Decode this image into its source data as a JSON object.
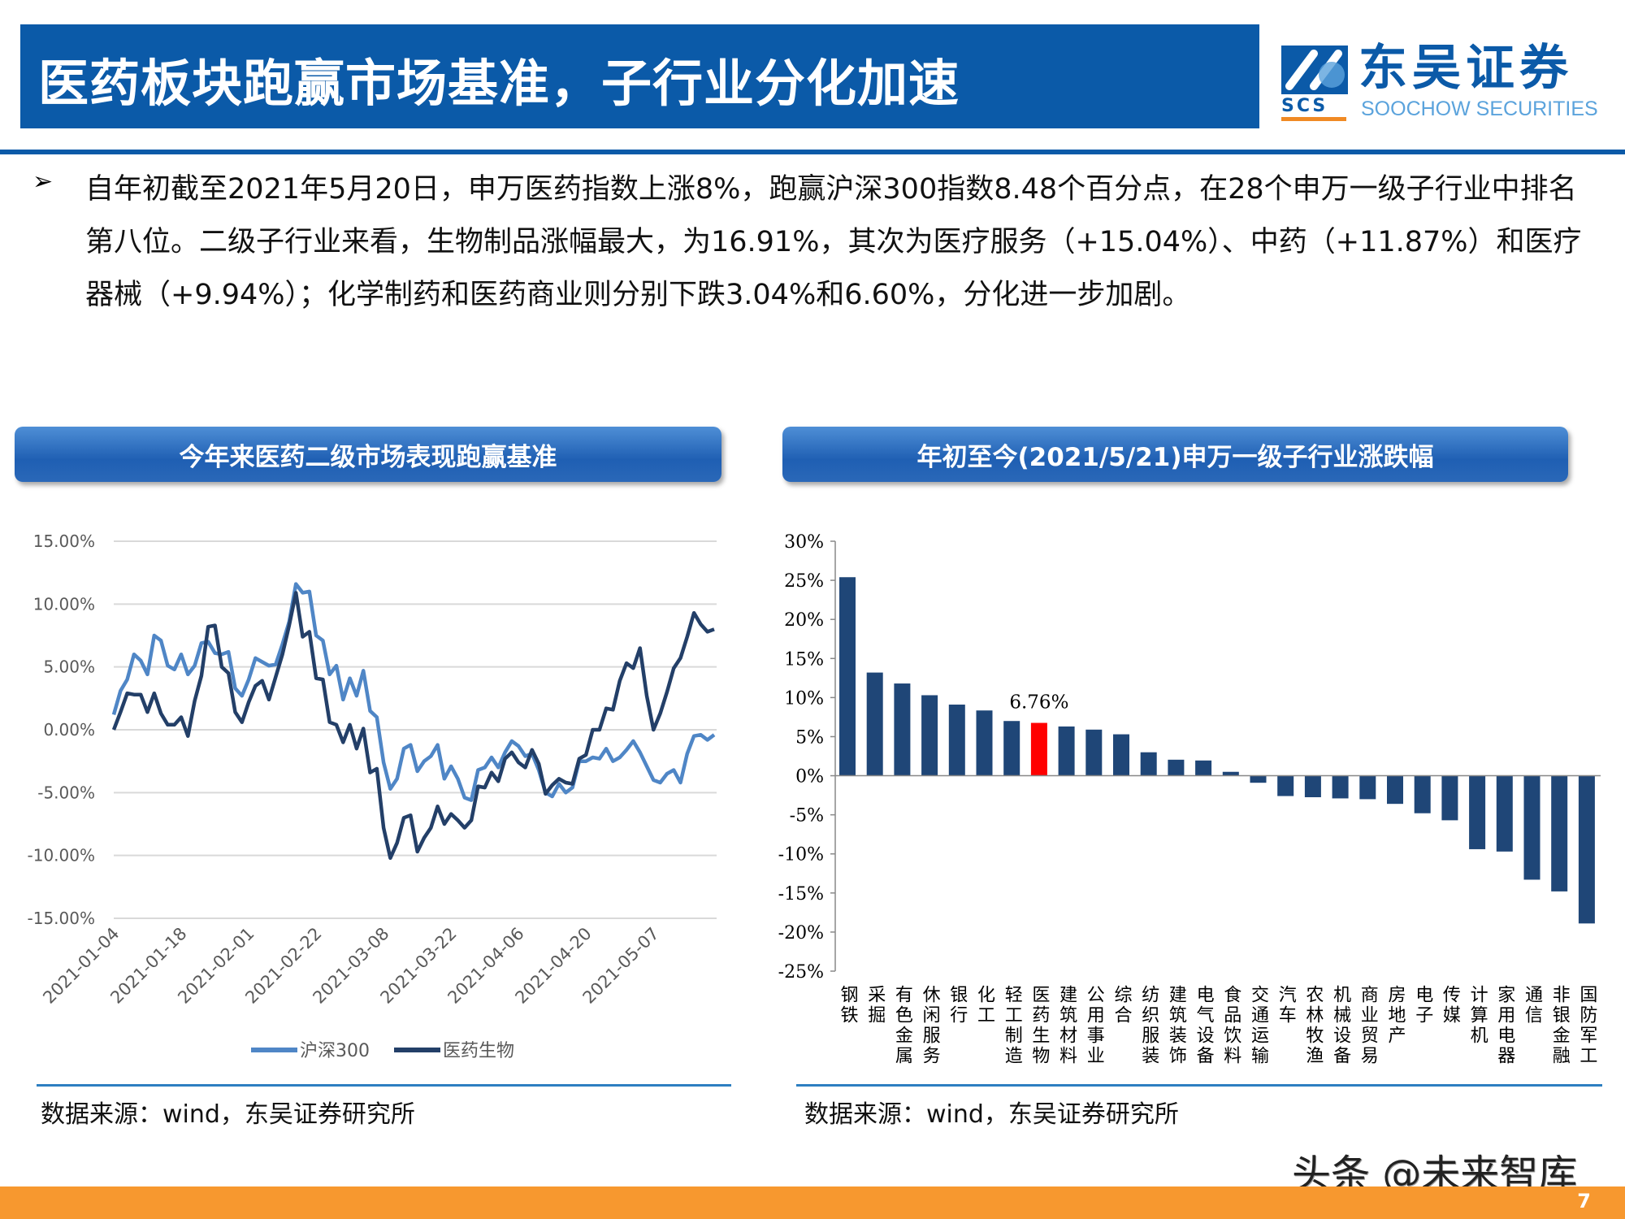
{
  "header": {
    "title": "医药板块跑赢市场基准，子行业分化加速",
    "logo": {
      "cn": "东吴证券",
      "en": "SOOCHOW SECURITIES",
      "abbr": "SCS"
    },
    "colors": {
      "brand_blue": "#0b5aa8",
      "accent_orange": "#f7982f"
    }
  },
  "bullet": {
    "icon": "arrow-bullet-icon",
    "lines": [
      "自年初截至2021年5月20日，申万医药指数上涨8%，跑赢沪深300指数8.48个百分点，在28个申万一级子行业中排名",
      "第八位。二级子行业来看，生物制品涨幅最大，为16.91%，其次为医疗服务（+15.04%）、中药（+11.87%）和医疗",
      "器械（+9.94%）；化学制药和医药商业则分别下跌3.04%和6.60%，分化进一步加剧。"
    ]
  },
  "left_panel": {
    "title": "今年来医药二级市场表现跑赢基准",
    "source": "数据来源：wind，东吴证券研究所"
  },
  "right_panel": {
    "title": "年初至今(2021/5/21)申万一级子行业涨跌幅",
    "source": "数据来源：wind，东吴证券研究所"
  },
  "watermark": "头条 @未来智库",
  "page_number": "7",
  "chart_data": [
    {
      "type": "line",
      "ylim": [
        -15,
        15
      ],
      "yticks": [
        "15.00%",
        "10.00%",
        "5.00%",
        "0.00%",
        "-5.00%",
        "-10.00%",
        "-15.00%"
      ],
      "grid": true,
      "legend_position": "bottom",
      "xticks": [
        "2021-01-04",
        "2021-01-18",
        "2021-02-01",
        "2021-02-22",
        "2021-03-08",
        "2021-03-22",
        "2021-04-06",
        "2021-04-20",
        "2021-05-07"
      ],
      "x": [
        "2021-01-04",
        "2021-01-05",
        "2021-01-06",
        "2021-01-07",
        "2021-01-08",
        "2021-01-11",
        "2021-01-12",
        "2021-01-13",
        "2021-01-14",
        "2021-01-15",
        "2021-01-18",
        "2021-01-19",
        "2021-01-20",
        "2021-01-21",
        "2021-01-22",
        "2021-01-25",
        "2021-01-26",
        "2021-01-27",
        "2021-01-28",
        "2021-01-29",
        "2021-02-01",
        "2021-02-02",
        "2021-02-03",
        "2021-02-04",
        "2021-02-05",
        "2021-02-08",
        "2021-02-09",
        "2021-02-10",
        "2021-02-18",
        "2021-02-19",
        "2021-02-22",
        "2021-02-23",
        "2021-02-24",
        "2021-02-25",
        "2021-02-26",
        "2021-03-01",
        "2021-03-02",
        "2021-03-03",
        "2021-03-04",
        "2021-03-05",
        "2021-03-08",
        "2021-03-09",
        "2021-03-10",
        "2021-03-11",
        "2021-03-12",
        "2021-03-15",
        "2021-03-16",
        "2021-03-17",
        "2021-03-18",
        "2021-03-19",
        "2021-03-22",
        "2021-03-23",
        "2021-03-24",
        "2021-03-25",
        "2021-03-26",
        "2021-03-29",
        "2021-03-30",
        "2021-03-31",
        "2021-04-01",
        "2021-04-02",
        "2021-04-06",
        "2021-04-07",
        "2021-04-08",
        "2021-04-09",
        "2021-04-12",
        "2021-04-13",
        "2021-04-14",
        "2021-04-15",
        "2021-04-16",
        "2021-04-19",
        "2021-04-20",
        "2021-04-21",
        "2021-04-22",
        "2021-04-23",
        "2021-04-26",
        "2021-04-27",
        "2021-04-28",
        "2021-04-29",
        "2021-04-30",
        "2021-05-06",
        "2021-05-07",
        "2021-05-10",
        "2021-05-11",
        "2021-05-12",
        "2021-05-13",
        "2021-05-14",
        "2021-05-17",
        "2021-05-18",
        "2021-05-19",
        "2021-05-20"
      ],
      "series": [
        {
          "name": "沪深300",
          "color": "#4f86c6",
          "values": [
            1.2,
            3.1,
            4.0,
            6.0,
            5.5,
            4.4,
            7.5,
            7.1,
            5.1,
            4.8,
            6.0,
            4.4,
            5.1,
            6.9,
            7.0,
            6.1,
            6.0,
            6.2,
            3.3,
            2.7,
            4.0,
            5.7,
            5.4,
            5.1,
            5.2,
            6.8,
            8.6,
            11.6,
            10.9,
            11.0,
            7.5,
            7.1,
            4.4,
            5.1,
            2.4,
            4.1,
            2.7,
            4.7,
            1.5,
            1.0,
            -2.6,
            -4.7,
            -3.9,
            -1.5,
            -1.2,
            -3.3,
            -2.5,
            -2.1,
            -1.2,
            -3.9,
            -2.9,
            -3.9,
            -5.4,
            -5.6,
            -3.2,
            -3.0,
            -2.2,
            -3.0,
            -1.8,
            -0.9,
            -1.3,
            -2.1,
            -1.9,
            -3.2,
            -5.0,
            -5.3,
            -4.3,
            -5.0,
            -4.6,
            -2.5,
            -2.5,
            -2.2,
            -2.3,
            -1.5,
            -2.5,
            -2.2,
            -1.6,
            -0.9,
            -1.8,
            -2.9,
            -4.0,
            -4.2,
            -3.5,
            -3.2,
            -4.2,
            -1.9,
            -0.5,
            -0.4,
            -0.8,
            -0.4
          ]
        },
        {
          "name": "医药生物",
          "color": "#233f68",
          "values": [
            0.0,
            1.4,
            2.9,
            2.8,
            2.8,
            1.4,
            2.9,
            1.3,
            0.4,
            0.4,
            1.0,
            -0.5,
            2.3,
            4.3,
            8.2,
            8.3,
            5.0,
            4.5,
            1.4,
            0.6,
            2.2,
            3.5,
            3.9,
            2.4,
            4.2,
            6.0,
            8.3,
            10.9,
            7.4,
            7.8,
            4.1,
            4.0,
            0.6,
            0.4,
            -1.0,
            0.4,
            -1.5,
            0.1,
            -3.4,
            -3.1,
            -7.8,
            -10.2,
            -9.0,
            -7.0,
            -6.8,
            -9.7,
            -8.6,
            -7.8,
            -6.1,
            -7.5,
            -6.7,
            -7.2,
            -7.8,
            -7.2,
            -4.5,
            -4.6,
            -3.4,
            -4.1,
            -2.3,
            -1.8,
            -2.6,
            -3.0,
            -1.6,
            -2.7,
            -5.1,
            -4.4,
            -3.9,
            -4.2,
            -4.3,
            -2.3,
            -2.0,
            0.0,
            0.0,
            1.7,
            1.6,
            3.9,
            5.3,
            4.9,
            6.5,
            2.7,
            0.0,
            1.3,
            3.0,
            4.9,
            5.7,
            7.4,
            9.3,
            8.4,
            7.8,
            8.0
          ]
        }
      ]
    },
    {
      "type": "bar",
      "ylim": [
        -25,
        30
      ],
      "yticks": [
        "30%",
        "25%",
        "20%",
        "15%",
        "10%",
        "5%",
        "0%",
        "-5%",
        "-10%",
        "-15%",
        "-20%",
        "-25%"
      ],
      "grid": false,
      "bar_color": "#1f4677",
      "highlight_color": "#ff0000",
      "highlight_category": "医药生物",
      "annotation": "6.76%",
      "categories": [
        "钢铁",
        "采掘",
        "有色金属",
        "休闲服务",
        "银行",
        "化工",
        "轻工制造",
        "医药生物",
        "建筑材料",
        "公用事业",
        "综合",
        "纺织服装",
        "建筑装饰",
        "电气设备",
        "食品饮料",
        "交通运输",
        "汽车",
        "农林牧渔",
        "机械设备",
        "商业贸易",
        "房地产",
        "电子",
        "传媒",
        "计算机",
        "家用电器",
        "通信",
        "非银金融",
        "国防军工"
      ],
      "values": [
        25.4,
        13.2,
        11.8,
        10.3,
        9.1,
        8.35,
        7.0,
        6.76,
        6.3,
        5.9,
        5.3,
        3.0,
        2.05,
        1.95,
        0.5,
        -0.9,
        -2.6,
        -2.75,
        -2.9,
        -3.0,
        -3.6,
        -4.8,
        -5.7,
        -9.4,
        -9.7,
        -13.3,
        -14.8,
        -18.9
      ]
    }
  ]
}
